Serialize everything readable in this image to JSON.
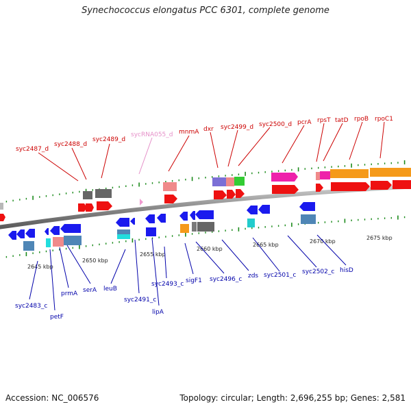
{
  "header": {
    "title": "Synechococcus elongatus PCC 6301, complete genome"
  },
  "footer": {
    "accession": "Accession: NC_006576",
    "summary": "Topology: circular; Length: 2,696,255 bp; Genes: 2,581"
  },
  "colors": {
    "top_label": "#cc0000",
    "bottom_label": "#0000aa",
    "rna_label": "#e58fc8",
    "backbone": "#8c8c8c",
    "tick": "#1a8a1a"
  },
  "scale_labels": [
    "2645 kbp",
    "2650 kbp",
    "2655 kbp",
    "2660 kbp",
    "2665 kbp",
    "2670 kbp",
    "2675 kbp"
  ],
  "top_genes": [
    {
      "label": "syc2487_d"
    },
    {
      "label": "syc2488_d"
    },
    {
      "label": "syc2489_d"
    },
    {
      "label": "sycRNA055_d",
      "rna": true
    },
    {
      "label": "mnmA"
    },
    {
      "label": "dxr"
    },
    {
      "label": "syc2499_d"
    },
    {
      "label": "syc2500_d"
    },
    {
      "label": "pcrA"
    },
    {
      "label": "rpsT"
    },
    {
      "label": "tatD"
    },
    {
      "label": "rpoB"
    },
    {
      "label": "rpoC1"
    }
  ],
  "bottom_genes": [
    {
      "label": "syc2483_c"
    },
    {
      "label": "petF"
    },
    {
      "label": "prmA"
    },
    {
      "label": "serA"
    },
    {
      "label": "leuB"
    },
    {
      "label": "syc2491_c"
    },
    {
      "label": "lipA"
    },
    {
      "label": "syc2493_c"
    },
    {
      "label": "sigF1"
    },
    {
      "label": "syc2496_c"
    },
    {
      "label": "zds"
    },
    {
      "label": "syc2501_c"
    },
    {
      "label": "syc2502_c"
    },
    {
      "label": "hisD"
    }
  ]
}
